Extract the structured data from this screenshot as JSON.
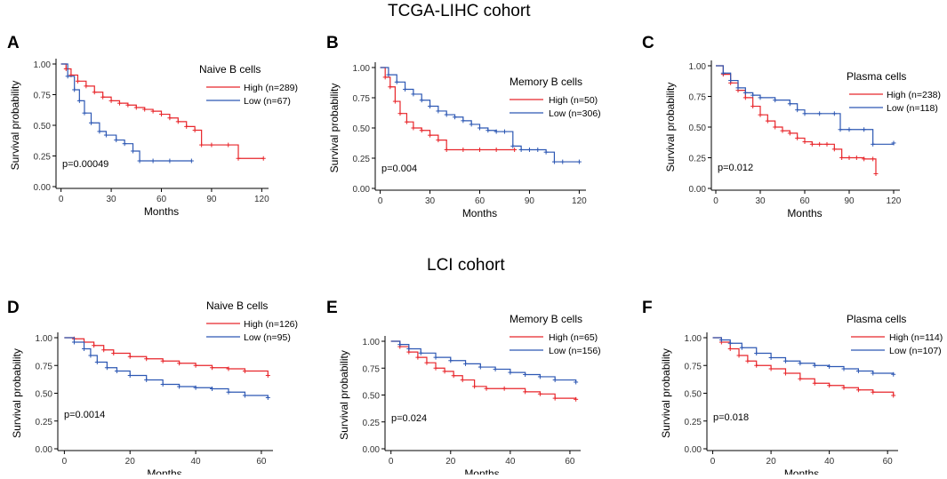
{
  "cohort_titles": {
    "top": "TCGA-LIHC cohort",
    "bottom": "LCI cohort"
  },
  "colors": {
    "high": "#e8262b",
    "low": "#2c57b3"
  },
  "chart_data": [
    {
      "type": "line",
      "panel_label": "A",
      "legend_title": "Naive B cells",
      "xlabel": "Months",
      "ylabel": "Survival probability",
      "xticks": [
        0,
        30,
        60,
        90,
        120
      ],
      "yticks": [
        "0.00",
        "0.25",
        "0.50",
        "0.75",
        "1.00"
      ],
      "xlim": [
        -3,
        123
      ],
      "ylim": [
        0,
        1
      ],
      "pvalue": "p=0.00049",
      "series": [
        {
          "name": "High (n=289)",
          "color": "high",
          "x": [
            0,
            3,
            6,
            10,
            15,
            20,
            25,
            30,
            35,
            40,
            45,
            50,
            55,
            60,
            65,
            70,
            75,
            80,
            84,
            90,
            100,
            106,
            121
          ],
          "y": [
            1.0,
            0.96,
            0.91,
            0.86,
            0.82,
            0.77,
            0.73,
            0.7,
            0.68,
            0.665,
            0.645,
            0.63,
            0.615,
            0.59,
            0.56,
            0.53,
            0.49,
            0.46,
            0.34,
            0.34,
            0.34,
            0.23,
            0.23
          ]
        },
        {
          "name": "Low  (n=67)",
          "color": "low",
          "x": [
            0,
            4,
            8,
            11,
            14,
            18,
            23,
            27,
            33,
            38,
            43,
            47,
            55,
            65,
            78
          ],
          "y": [
            1.0,
            0.9,
            0.79,
            0.7,
            0.6,
            0.52,
            0.45,
            0.42,
            0.38,
            0.35,
            0.29,
            0.21,
            0.21,
            0.21,
            0.21
          ]
        }
      ]
    },
    {
      "type": "line",
      "panel_label": "B",
      "legend_title": "Memory B cells",
      "xlabel": "Months",
      "ylabel": "Survival probability",
      "xticks": [
        0,
        30,
        60,
        90,
        120
      ],
      "yticks": [
        "0.00",
        "0.25",
        "0.50",
        "0.75",
        "1.00"
      ],
      "xlim": [
        -3,
        123
      ],
      "ylim": [
        0,
        1
      ],
      "pvalue": "p=0.004",
      "series": [
        {
          "name": "High (n=50)",
          "color": "high",
          "x": [
            0,
            3,
            6,
            9,
            12,
            16,
            20,
            25,
            30,
            35,
            40,
            50,
            60,
            70,
            81
          ],
          "y": [
            1.0,
            0.92,
            0.84,
            0.72,
            0.62,
            0.55,
            0.5,
            0.48,
            0.44,
            0.4,
            0.32,
            0.32,
            0.32,
            0.32,
            0.32
          ]
        },
        {
          "name": "Low  (n=306)",
          "color": "low",
          "x": [
            0,
            5,
            10,
            15,
            20,
            25,
            30,
            35,
            40,
            45,
            50,
            55,
            60,
            65,
            70,
            75,
            80,
            85,
            90,
            95,
            100,
            105,
            110,
            120
          ],
          "y": [
            1.0,
            0.94,
            0.88,
            0.82,
            0.78,
            0.73,
            0.68,
            0.64,
            0.61,
            0.59,
            0.56,
            0.53,
            0.5,
            0.48,
            0.47,
            0.47,
            0.35,
            0.32,
            0.32,
            0.32,
            0.3,
            0.22,
            0.22,
            0.22
          ]
        }
      ]
    },
    {
      "type": "line",
      "panel_label": "C",
      "legend_title": "Plasma cells",
      "xlabel": "Months",
      "ylabel": "Survival probability",
      "xticks": [
        0,
        30,
        60,
        90,
        120
      ],
      "yticks": [
        "0.00",
        "0.25",
        "0.50",
        "0.75",
        "1.00"
      ],
      "xlim": [
        -3,
        123
      ],
      "ylim": [
        0,
        1
      ],
      "pvalue": "p=0.012",
      "series": [
        {
          "name": "High (n=238)",
          "color": "high",
          "x": [
            0,
            5,
            10,
            15,
            20,
            25,
            30,
            35,
            40,
            45,
            50,
            55,
            60,
            65,
            70,
            75,
            80,
            85,
            90,
            95,
            100,
            106,
            108
          ],
          "y": [
            1.0,
            0.93,
            0.86,
            0.8,
            0.74,
            0.67,
            0.6,
            0.55,
            0.5,
            0.47,
            0.45,
            0.41,
            0.38,
            0.36,
            0.36,
            0.36,
            0.32,
            0.25,
            0.25,
            0.25,
            0.24,
            0.24,
            0.12
          ]
        },
        {
          "name": "Low  (n=118)",
          "color": "low",
          "x": [
            0,
            5,
            10,
            15,
            20,
            25,
            30,
            40,
            50,
            55,
            60,
            70,
            80,
            84,
            90,
            100,
            106,
            120
          ],
          "y": [
            1.0,
            0.94,
            0.88,
            0.82,
            0.78,
            0.76,
            0.74,
            0.72,
            0.69,
            0.64,
            0.61,
            0.61,
            0.61,
            0.48,
            0.48,
            0.48,
            0.36,
            0.37
          ]
        }
      ]
    },
    {
      "type": "line",
      "panel_label": "D",
      "legend_title": "Naive B cells",
      "xlabel": "Months",
      "ylabel": "Survival probability",
      "xticks": [
        0,
        20,
        40,
        60
      ],
      "yticks": [
        "0.00",
        "0.25",
        "0.50",
        "0.75",
        "1.00"
      ],
      "xlim": [
        -2,
        63
      ],
      "ylim": [
        0,
        1
      ],
      "pvalue": "p=0.0014",
      "series": [
        {
          "name": "High (n=126)",
          "color": "high",
          "x": [
            0,
            3,
            6,
            9,
            12,
            15,
            20,
            25,
            30,
            35,
            40,
            45,
            50,
            55,
            62
          ],
          "y": [
            1.0,
            0.99,
            0.96,
            0.93,
            0.89,
            0.86,
            0.83,
            0.81,
            0.79,
            0.77,
            0.75,
            0.73,
            0.72,
            0.7,
            0.66
          ]
        },
        {
          "name": "Low  (n=95)",
          "color": "low",
          "x": [
            0,
            3,
            6,
            8,
            10,
            13,
            16,
            20,
            25,
            30,
            35,
            40,
            45,
            50,
            55,
            62
          ],
          "y": [
            1.0,
            0.96,
            0.9,
            0.84,
            0.78,
            0.73,
            0.7,
            0.66,
            0.62,
            0.58,
            0.56,
            0.55,
            0.54,
            0.51,
            0.48,
            0.46
          ]
        }
      ]
    },
    {
      "type": "line",
      "panel_label": "E",
      "legend_title": "Memory B cells",
      "xlabel": "Months",
      "ylabel": "Survival probability",
      "xticks": [
        0,
        20,
        40,
        60
      ],
      "yticks": [
        "0.00",
        "0.25",
        "0.50",
        "0.75",
        "1.00"
      ],
      "xlim": [
        -2,
        63
      ],
      "ylim": [
        0,
        1
      ],
      "pvalue": "p=0.024",
      "series": [
        {
          "name": "High (n=65)",
          "color": "high",
          "x": [
            0,
            3,
            6,
            9,
            12,
            15,
            18,
            21,
            24,
            28,
            32,
            38,
            45,
            50,
            55,
            62
          ],
          "y": [
            1.0,
            0.95,
            0.9,
            0.85,
            0.8,
            0.75,
            0.72,
            0.68,
            0.64,
            0.58,
            0.56,
            0.56,
            0.53,
            0.51,
            0.47,
            0.46
          ]
        },
        {
          "name": "Low  (n=156)",
          "color": "low",
          "x": [
            0,
            3,
            6,
            10,
            15,
            20,
            25,
            30,
            35,
            40,
            45,
            50,
            55,
            62
          ],
          "y": [
            1.0,
            0.97,
            0.93,
            0.89,
            0.85,
            0.82,
            0.79,
            0.76,
            0.74,
            0.71,
            0.69,
            0.67,
            0.64,
            0.62
          ]
        }
      ]
    },
    {
      "type": "line",
      "panel_label": "F",
      "legend_title": "Plasma cells",
      "xlabel": "Months",
      "ylabel": "Survival probability",
      "xticks": [
        0,
        20,
        40,
        60
      ],
      "yticks": [
        "0.00",
        "0.25",
        "0.50",
        "0.75",
        "1.00"
      ],
      "xlim": [
        -2,
        63
      ],
      "ylim": [
        0,
        1
      ],
      "pvalue": "p=0.018",
      "series": [
        {
          "name": "High (n=114)",
          "color": "high",
          "x": [
            0,
            3,
            6,
            9,
            12,
            15,
            20,
            25,
            30,
            35,
            40,
            45,
            50,
            55,
            62
          ],
          "y": [
            1.0,
            0.96,
            0.9,
            0.84,
            0.79,
            0.75,
            0.72,
            0.68,
            0.63,
            0.59,
            0.57,
            0.55,
            0.53,
            0.51,
            0.48
          ]
        },
        {
          "name": "Low  (n=107)",
          "color": "low",
          "x": [
            0,
            3,
            6,
            10,
            15,
            20,
            25,
            30,
            35,
            40,
            45,
            50,
            55,
            62
          ],
          "y": [
            1.0,
            0.98,
            0.95,
            0.91,
            0.86,
            0.82,
            0.79,
            0.77,
            0.75,
            0.74,
            0.72,
            0.7,
            0.68,
            0.67
          ]
        }
      ]
    }
  ]
}
